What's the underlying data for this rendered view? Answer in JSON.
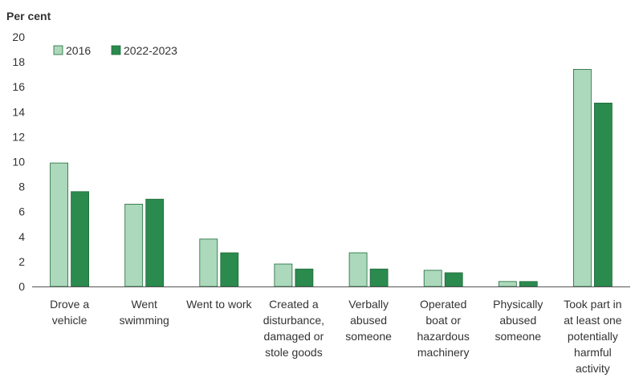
{
  "chart_data": {
    "type": "bar",
    "ylabel": "Per cent",
    "xlabel": "",
    "title": "",
    "ylim": [
      0,
      20
    ],
    "yticks": [
      0,
      2,
      4,
      6,
      8,
      10,
      12,
      14,
      16,
      18,
      20
    ],
    "grid": false,
    "legend_position": "top-left",
    "categories": [
      [
        "Drove a",
        "vehicle"
      ],
      [
        "Went",
        "swimming"
      ],
      [
        "Went to work"
      ],
      [
        "Created a",
        "disturbance,",
        "damaged or",
        "stole goods"
      ],
      [
        "Verbally",
        "abused",
        "someone"
      ],
      [
        "Operated",
        "boat or",
        "hazardous",
        "machinery"
      ],
      [
        "Physically",
        "abused",
        "someone"
      ],
      [
        "Took part in",
        "at least one",
        "potentially",
        "harmful",
        "activity"
      ]
    ],
    "series": [
      {
        "name": "2016",
        "color": "#acd8bb",
        "values": [
          9.9,
          6.6,
          3.8,
          1.8,
          2.7,
          1.3,
          0.4,
          17.4
        ]
      },
      {
        "name": "2022-2023",
        "color": "#2b8a4e",
        "values": [
          7.6,
          7.0,
          2.7,
          1.4,
          1.4,
          1.1,
          0.4,
          14.7
        ]
      }
    ]
  }
}
